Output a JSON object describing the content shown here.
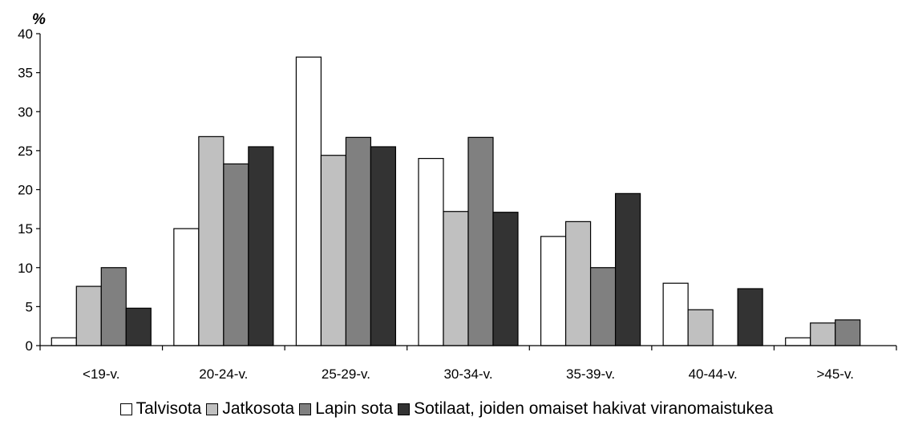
{
  "chart_data": {
    "type": "bar",
    "title": "",
    "xlabel": "",
    "ylabel": "%",
    "ylim": [
      0,
      40
    ],
    "yticks": [
      0,
      5,
      10,
      15,
      20,
      25,
      30,
      35,
      40
    ],
    "grid": false,
    "legend_position": "bottom",
    "categories": [
      "<19-v.",
      "20-24-v.",
      "25-29-v.",
      "30-34-v.",
      "35-39-v.",
      "40-44-v.",
      ">45-v."
    ],
    "series": [
      {
        "name": "Talvisota",
        "color": "#ffffff",
        "values": [
          1,
          15,
          37,
          24,
          14,
          8,
          1
        ]
      },
      {
        "name": "Jatkosota",
        "color": "#c0c0c0",
        "values": [
          7.6,
          26.8,
          24.4,
          17.2,
          15.9,
          4.6,
          2.9
        ]
      },
      {
        "name": "Lapin sota",
        "color": "#808080",
        "values": [
          10,
          23.3,
          26.7,
          26.7,
          10,
          0,
          3.3
        ]
      },
      {
        "name": "Sotilaat, joiden omaiset hakivat viranomaistukea",
        "color": "#333333",
        "values": [
          4.8,
          25.5,
          25.5,
          17.1,
          19.5,
          7.3,
          0
        ]
      }
    ]
  }
}
